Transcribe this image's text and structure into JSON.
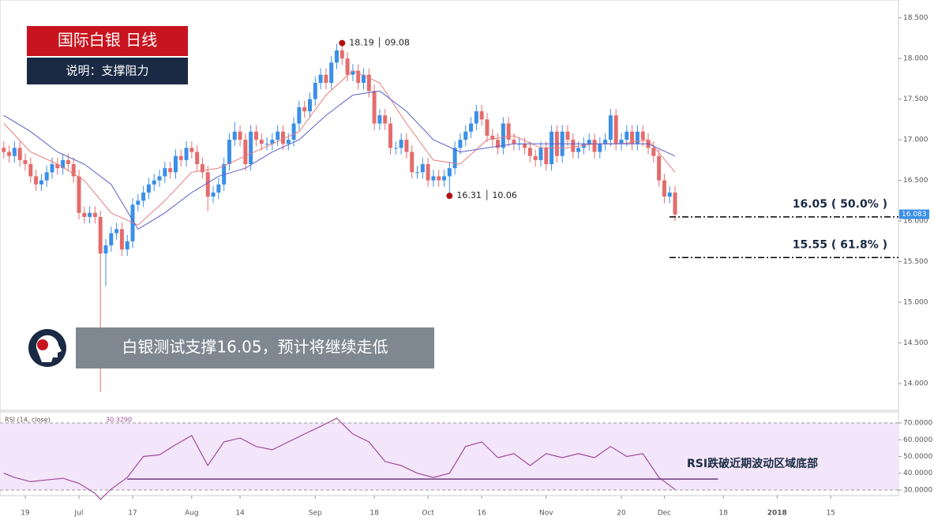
{
  "header": {
    "title": "国际白银  日线",
    "subtitle": "说明：支撑阻力"
  },
  "caption": "白银测试支撑16.05，预计将继续走低",
  "chart_data": [
    {
      "type": "candlestick",
      "xlim": [
        -0.7,
        166.6
      ],
      "ylim": [
        13.67,
        18.72
      ],
      "yticks": [
        {
          "value": 14,
          "label": "14.000"
        },
        {
          "value": 14.5,
          "label": "14.500"
        },
        {
          "value": 15,
          "label": "15.000"
        },
        {
          "value": 15.5,
          "label": "15.500"
        },
        {
          "value": 16,
          "label": "16.000"
        },
        {
          "value": 16.5,
          "label": "16.500"
        },
        {
          "value": 17,
          "label": "17.000"
        },
        {
          "value": 17.5,
          "label": "17.500"
        },
        {
          "value": 18,
          "label": "18.000"
        },
        {
          "value": 18.5,
          "label": "18.500"
        }
      ],
      "up_color": "#3a8fe6",
      "down_color": "#e46c6c",
      "open": [
        16.9,
        16.85,
        16.8,
        16.9,
        16.75,
        16.7,
        16.55,
        16.45,
        16.5,
        16.6,
        16.7,
        16.65,
        16.75,
        16.7,
        16.55,
        16.1,
        16.05,
        16.1,
        16.05,
        15.6,
        15.7,
        15.85,
        15.9,
        15.65,
        15.75,
        16.2,
        16.25,
        16.35,
        16.45,
        16.5,
        16.55,
        16.65,
        16.6,
        16.8,
        16.75,
        16.9,
        16.85,
        16.7,
        16.6,
        16.3,
        16.35,
        16.45,
        16.7,
        17.0,
        17.1,
        17.0,
        16.7,
        17.1,
        17.0,
        16.95,
        16.95,
        17.0,
        17.1,
        16.95,
        17.0,
        17.2,
        17.4,
        17.35,
        17.5,
        17.7,
        17.8,
        17.7,
        17.95,
        18.1,
        18.0,
        17.8,
        17.85,
        17.7,
        17.8,
        17.6,
        17.2,
        17.3,
        17.2,
        16.9,
        16.9,
        17.0,
        16.85,
        16.6,
        16.6,
        16.7,
        16.5,
        16.55,
        16.5,
        16.55,
        16.65,
        16.9,
        17.0,
        17.1,
        17.2,
        17.35,
        17.25,
        17.05,
        17.0,
        16.9,
        17.2,
        17.0,
        16.95,
        16.95,
        16.9,
        16.8,
        16.75,
        16.9,
        16.7,
        17.1,
        16.8,
        17.1,
        17.0,
        16.85,
        16.9,
        16.95,
        17.0,
        16.85,
        16.95,
        17.0,
        17.3,
        16.95,
        17.0,
        17.1,
        16.95,
        17.1,
        17.0,
        16.9,
        16.8,
        16.5,
        16.3,
        16.35
      ],
      "high": [
        16.98,
        16.93,
        16.98,
        16.98,
        16.83,
        16.78,
        16.63,
        16.58,
        16.68,
        16.78,
        16.78,
        16.83,
        16.83,
        16.78,
        16.63,
        16.18,
        16.18,
        16.18,
        16.13,
        15.78,
        15.93,
        15.98,
        15.98,
        15.83,
        16.28,
        16.33,
        16.43,
        16.53,
        16.58,
        16.63,
        16.73,
        16.73,
        16.88,
        16.88,
        16.98,
        16.98,
        16.93,
        16.78,
        16.68,
        16.43,
        16.53,
        16.78,
        17.08,
        17.22,
        17.18,
        17.08,
        17.18,
        17.18,
        17.08,
        17.03,
        17.08,
        17.18,
        17.18,
        17.08,
        17.28,
        17.48,
        17.48,
        17.58,
        17.78,
        17.88,
        17.88,
        18.03,
        18.18,
        18.19,
        18.08,
        17.93,
        17.93,
        17.88,
        17.88,
        17.68,
        17.38,
        17.38,
        17.28,
        16.98,
        17.08,
        17.08,
        16.93,
        16.68,
        16.78,
        16.78,
        16.63,
        16.63,
        16.63,
        16.73,
        16.98,
        17.08,
        17.18,
        17.28,
        17.43,
        17.43,
        17.33,
        17.13,
        17.08,
        17.28,
        17.28,
        17.08,
        17.03,
        17.03,
        16.98,
        16.88,
        16.98,
        16.98,
        17.18,
        17.18,
        17.18,
        17.18,
        17.08,
        16.98,
        17.03,
        17.08,
        17.08,
        17.03,
        17.08,
        17.38,
        17.38,
        17.08,
        17.18,
        17.18,
        17.18,
        17.18,
        17.08,
        16.98,
        16.88,
        16.58,
        16.43,
        16.43
      ],
      "low": [
        16.77,
        16.72,
        16.72,
        16.67,
        16.62,
        16.47,
        16.37,
        16.37,
        16.42,
        16.52,
        16.57,
        16.57,
        16.62,
        16.47,
        16.02,
        15.97,
        15.97,
        15.97,
        13.9,
        15.2,
        15.62,
        15.77,
        15.57,
        15.57,
        15.67,
        16.12,
        16.17,
        16.27,
        16.37,
        16.42,
        16.47,
        16.52,
        16.52,
        16.67,
        16.67,
        16.77,
        16.62,
        16.52,
        16.12,
        16.22,
        16.27,
        16.37,
        16.62,
        16.92,
        16.92,
        16.62,
        16.62,
        16.92,
        16.87,
        16.87,
        16.87,
        16.92,
        16.87,
        16.87,
        16.92,
        17.12,
        17.27,
        17.27,
        17.42,
        17.62,
        17.62,
        17.62,
        17.87,
        17.92,
        17.72,
        17.72,
        17.62,
        17.62,
        17.52,
        17.12,
        17.12,
        17.12,
        16.82,
        16.82,
        16.82,
        16.77,
        16.52,
        16.52,
        16.52,
        16.42,
        16.42,
        16.42,
        16.42,
        16.31,
        16.57,
        16.82,
        16.92,
        17.02,
        17.12,
        17.17,
        16.97,
        16.92,
        16.82,
        16.82,
        16.92,
        16.87,
        16.87,
        16.82,
        16.72,
        16.67,
        16.67,
        16.62,
        16.62,
        16.72,
        16.72,
        16.92,
        16.77,
        16.77,
        16.82,
        16.87,
        16.77,
        16.77,
        16.87,
        16.92,
        16.87,
        16.87,
        16.92,
        16.87,
        16.87,
        16.92,
        16.82,
        16.72,
        16.42,
        16.22,
        16.22,
        16.0
      ],
      "close": [
        16.85,
        16.8,
        16.9,
        16.75,
        16.7,
        16.55,
        16.45,
        16.5,
        16.6,
        16.7,
        16.65,
        16.75,
        16.7,
        16.55,
        16.1,
        16.05,
        16.1,
        16.05,
        15.6,
        15.7,
        15.85,
        15.9,
        15.65,
        15.75,
        16.2,
        16.25,
        16.35,
        16.45,
        16.5,
        16.55,
        16.65,
        16.6,
        16.8,
        16.75,
        16.9,
        16.85,
        16.7,
        16.6,
        16.3,
        16.35,
        16.45,
        16.7,
        17.0,
        17.1,
        17.0,
        16.7,
        17.1,
        17.0,
        16.95,
        16.95,
        17.0,
        17.1,
        16.95,
        17.0,
        17.2,
        17.4,
        17.35,
        17.5,
        17.7,
        17.8,
        17.7,
        17.95,
        18.1,
        18.0,
        17.8,
        17.85,
        17.7,
        17.8,
        17.6,
        17.2,
        17.3,
        17.2,
        16.9,
        16.9,
        17.0,
        16.85,
        16.6,
        16.6,
        16.7,
        16.5,
        16.55,
        16.5,
        16.55,
        16.65,
        16.9,
        17.0,
        17.1,
        17.2,
        17.35,
        17.25,
        17.05,
        17.0,
        16.9,
        17.2,
        17.0,
        16.95,
        16.95,
        16.9,
        16.8,
        16.75,
        16.9,
        16.7,
        17.1,
        16.8,
        17.1,
        17.0,
        16.85,
        16.9,
        16.95,
        17.0,
        16.85,
        16.95,
        17.0,
        17.3,
        16.95,
        17.0,
        17.1,
        16.95,
        17.1,
        17.0,
        16.9,
        16.8,
        16.5,
        16.3,
        16.35,
        16.08
      ],
      "lines": [
        {
          "color": "#e87b7b",
          "x": [
            0,
            5,
            10,
            15,
            20,
            25,
            30,
            35,
            40,
            45,
            50,
            55,
            60,
            65,
            70,
            75,
            80,
            85,
            90,
            95,
            100,
            105,
            110,
            115,
            120,
            125
          ],
          "values": [
            17.2,
            16.85,
            16.7,
            16.5,
            16.1,
            15.95,
            16.25,
            16.6,
            16.65,
            16.8,
            16.95,
            17.1,
            17.55,
            17.85,
            17.7,
            17.2,
            16.75,
            16.7,
            17.0,
            17.05,
            16.9,
            16.9,
            16.95,
            16.95,
            17.0,
            16.6
          ]
        },
        {
          "color": "#5b5fc7",
          "x": [
            0,
            5,
            10,
            15,
            20,
            25,
            30,
            35,
            40,
            45,
            50,
            55,
            60,
            65,
            70,
            75,
            80,
            85,
            90,
            95,
            100,
            105,
            110,
            115,
            120,
            125
          ],
          "values": [
            17.3,
            17.1,
            16.85,
            16.7,
            16.45,
            15.9,
            16.1,
            16.35,
            16.55,
            16.65,
            16.85,
            17.0,
            17.3,
            17.55,
            17.6,
            17.35,
            17.0,
            16.85,
            16.9,
            16.95,
            16.95,
            16.95,
            16.95,
            16.95,
            16.95,
            16.8
          ]
        }
      ],
      "last_price": {
        "value": 16.083,
        "label": "16.083"
      },
      "levels": [
        {
          "value": 16.05,
          "label": "16.05 ( 50.0% )"
        },
        {
          "value": 15.55,
          "label": "15.55 ( 61.8% )"
        }
      ],
      "annotations": [
        {
          "x": 63,
          "y": 18.19,
          "label": "18.19 │ 09.08"
        },
        {
          "x": 83,
          "y": 16.31,
          "label": "16.31 │ 10.06"
        }
      ]
    },
    {
      "type": "line",
      "title": "RSI (14, close)",
      "value_label": "30.3290",
      "last_value": 30.329,
      "xlim": [
        -0.7,
        166.6
      ],
      "ylim": [
        26.7,
        76.6
      ],
      "xticks": [
        {
          "value": 4,
          "label": "19"
        },
        {
          "value": 14,
          "label": "Jul"
        },
        {
          "value": 24,
          "label": "17"
        },
        {
          "value": 35,
          "label": "Aug"
        },
        {
          "value": 44,
          "label": "14"
        },
        {
          "value": 58,
          "label": "Sep"
        },
        {
          "value": 69,
          "label": "18"
        },
        {
          "value": 79,
          "label": "Oct"
        },
        {
          "value": 89,
          "label": "16"
        },
        {
          "value": 101,
          "label": "Nov"
        },
        {
          "value": 115,
          "label": "20"
        },
        {
          "value": 123,
          "label": "Dec"
        },
        {
          "value": 134,
          "label": "18"
        },
        {
          "value": 144,
          "label": "2018"
        },
        {
          "value": 154,
          "label": "15"
        }
      ],
      "yticks": [
        {
          "value": 30,
          "label": "30.0000"
        },
        {
          "value": 40,
          "label": "40.0000"
        },
        {
          "value": 50,
          "label": "50.0000"
        },
        {
          "value": 60,
          "label": "60.0000"
        },
        {
          "value": 70,
          "label": "70.0000"
        }
      ],
      "band": [
        30,
        70
      ],
      "band_color": "#f4e6fa",
      "color": "#a04a9b",
      "x": [
        0,
        2,
        5,
        8,
        11,
        14,
        17,
        18,
        20,
        23,
        26,
        29,
        32,
        35,
        38,
        41,
        44,
        47,
        50,
        53,
        56,
        59,
        62,
        65,
        68,
        71,
        74,
        77,
        80,
        83,
        86,
        89,
        92,
        95,
        98,
        101,
        104,
        107,
        110,
        113,
        116,
        119,
        122,
        125
      ],
      "values": [
        40,
        37.5,
        35,
        36,
        37,
        34,
        28,
        24.4,
        30.5,
        37.5,
        50,
        51,
        57,
        62.5,
        44.6,
        58.7,
        61,
        56,
        54,
        58.7,
        63.4,
        68,
        72.8,
        63.4,
        58.7,
        47,
        44.6,
        40,
        37.5,
        40,
        56,
        58.7,
        49.3,
        51.7,
        44.6,
        51.7,
        49.3,
        51.7,
        49.3,
        56,
        50,
        51.7,
        37.5,
        30.329
      ],
      "support": {
        "y": 36.5,
        "x": [
          23,
          133
        ]
      },
      "annotation": "RSI跌破近期波动区域底部"
    }
  ]
}
